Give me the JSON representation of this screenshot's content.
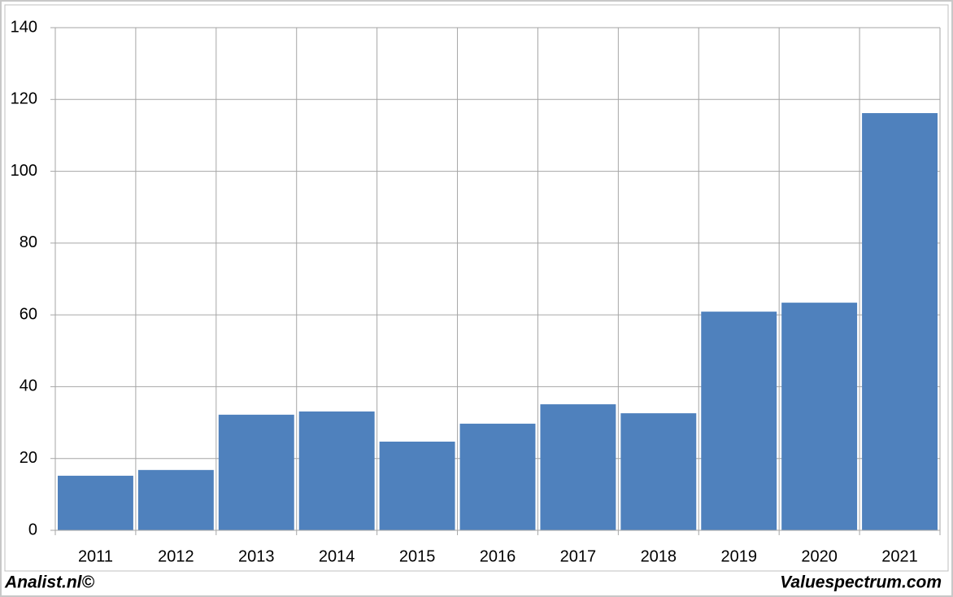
{
  "chart_data": {
    "type": "bar",
    "categories": [
      "2011",
      "2012",
      "2013",
      "2014",
      "2015",
      "2016",
      "2017",
      "2018",
      "2019",
      "2020",
      "2021"
    ],
    "values": [
      15.2,
      16.8,
      32.2,
      33.1,
      24.7,
      29.7,
      35.1,
      32.6,
      60.9,
      63.4,
      116.2
    ],
    "color": "#4f81bd",
    "ylim": [
      0,
      140
    ],
    "yticks": [
      0,
      20,
      40,
      60,
      80,
      100,
      120,
      140
    ],
    "grid": true,
    "annotations": [
      "Analist.nl©",
      "Valuespectrum.com"
    ]
  }
}
